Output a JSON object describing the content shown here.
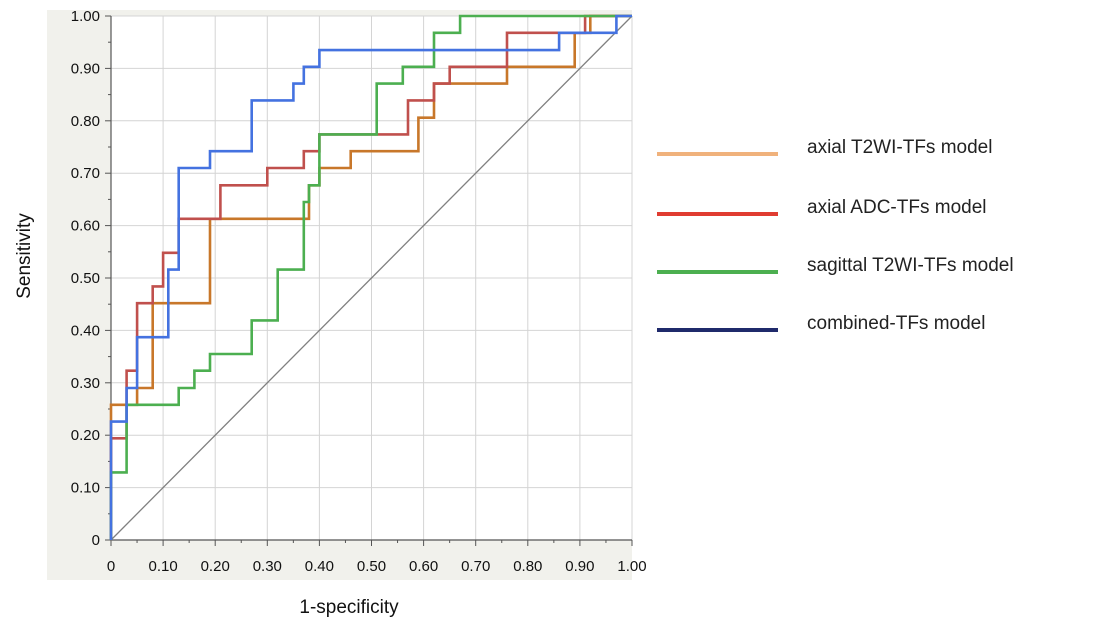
{
  "chart_data": {
    "type": "line",
    "xlabel": "1-specificity",
    "ylabel": "Sensitivity",
    "xlim": [
      0,
      1
    ],
    "ylim": [
      0,
      1
    ],
    "xticks": [
      "0",
      "0.10",
      "0.20",
      "0.30",
      "0.40",
      "0.50",
      "0.60",
      "0.70",
      "0.80",
      "0.90",
      "1.00"
    ],
    "yticks": [
      "0",
      "0.10",
      "0.20",
      "0.30",
      "0.40",
      "0.50",
      "0.60",
      "0.70",
      "0.80",
      "0.90",
      "1.00"
    ],
    "grid": true,
    "legend_position": "right",
    "reference_line": {
      "x": [
        0,
        1
      ],
      "y": [
        0,
        1
      ],
      "color": "#808080"
    },
    "series": [
      {
        "name": "axial T2WI-TFs model",
        "color": "#C8772A",
        "legend_color": "#F0B27C",
        "x": [
          0,
          0,
          0.05,
          0.05,
          0.08,
          0.08,
          0.19,
          0.19,
          0.38,
          0.38,
          0.4,
          0.4,
          0.46,
          0.46,
          0.59,
          0.59,
          0.62,
          0.62,
          0.76,
          0.76,
          0.89,
          0.89,
          0.92,
          0.92,
          1.0
        ],
        "y": [
          0,
          0.258,
          0.258,
          0.29,
          0.29,
          0.452,
          0.452,
          0.613,
          0.613,
          0.677,
          0.677,
          0.71,
          0.71,
          0.742,
          0.742,
          0.806,
          0.806,
          0.871,
          0.871,
          0.903,
          0.903,
          0.968,
          0.968,
          1.0,
          1.0
        ]
      },
      {
        "name": "axial ADC-TFs model",
        "color": "#C0504D",
        "legend_color": "#E03C31",
        "x": [
          0,
          0,
          0.03,
          0.03,
          0.05,
          0.05,
          0.08,
          0.08,
          0.1,
          0.1,
          0.13,
          0.13,
          0.21,
          0.21,
          0.3,
          0.3,
          0.37,
          0.37,
          0.4,
          0.4,
          0.57,
          0.57,
          0.62,
          0.62,
          0.65,
          0.65,
          0.76,
          0.76,
          0.91,
          0.91,
          1.0
        ],
        "y": [
          0,
          0.194,
          0.194,
          0.323,
          0.323,
          0.452,
          0.452,
          0.484,
          0.484,
          0.548,
          0.548,
          0.613,
          0.613,
          0.677,
          0.677,
          0.71,
          0.71,
          0.742,
          0.742,
          0.774,
          0.774,
          0.839,
          0.839,
          0.871,
          0.871,
          0.903,
          0.903,
          0.968,
          0.968,
          1.0,
          1.0
        ]
      },
      {
        "name": "sagittal T2WI-TFs model",
        "color": "#4CAF50",
        "legend_color": "#4CAF50",
        "x": [
          0,
          0,
          0.03,
          0.03,
          0.13,
          0.13,
          0.16,
          0.16,
          0.19,
          0.19,
          0.27,
          0.27,
          0.32,
          0.32,
          0.37,
          0.37,
          0.38,
          0.38,
          0.4,
          0.4,
          0.51,
          0.51,
          0.56,
          0.56,
          0.62,
          0.62,
          0.67,
          0.67,
          1.0
        ],
        "y": [
          0,
          0.129,
          0.129,
          0.258,
          0.258,
          0.29,
          0.29,
          0.323,
          0.323,
          0.355,
          0.355,
          0.419,
          0.419,
          0.516,
          0.516,
          0.645,
          0.645,
          0.677,
          0.677,
          0.774,
          0.774,
          0.871,
          0.871,
          0.903,
          0.903,
          0.968,
          0.968,
          1.0,
          1.0
        ]
      },
      {
        "name": "combined-TFs model",
        "color": "#4472E0",
        "legend_color": "#1F2A6B",
        "x": [
          0,
          0,
          0.03,
          0.03,
          0.05,
          0.05,
          0.11,
          0.11,
          0.13,
          0.13,
          0.19,
          0.19,
          0.27,
          0.27,
          0.35,
          0.35,
          0.37,
          0.37,
          0.4,
          0.4,
          0.46,
          0.46,
          0.86,
          0.86,
          0.97,
          0.97,
          1.0
        ],
        "y": [
          0,
          0.226,
          0.226,
          0.29,
          0.29,
          0.387,
          0.387,
          0.516,
          0.516,
          0.71,
          0.71,
          0.742,
          0.742,
          0.839,
          0.839,
          0.871,
          0.871,
          0.903,
          0.903,
          0.935,
          0.935,
          0.935,
          0.935,
          0.968,
          0.968,
          1.0,
          1.0
        ]
      }
    ]
  }
}
